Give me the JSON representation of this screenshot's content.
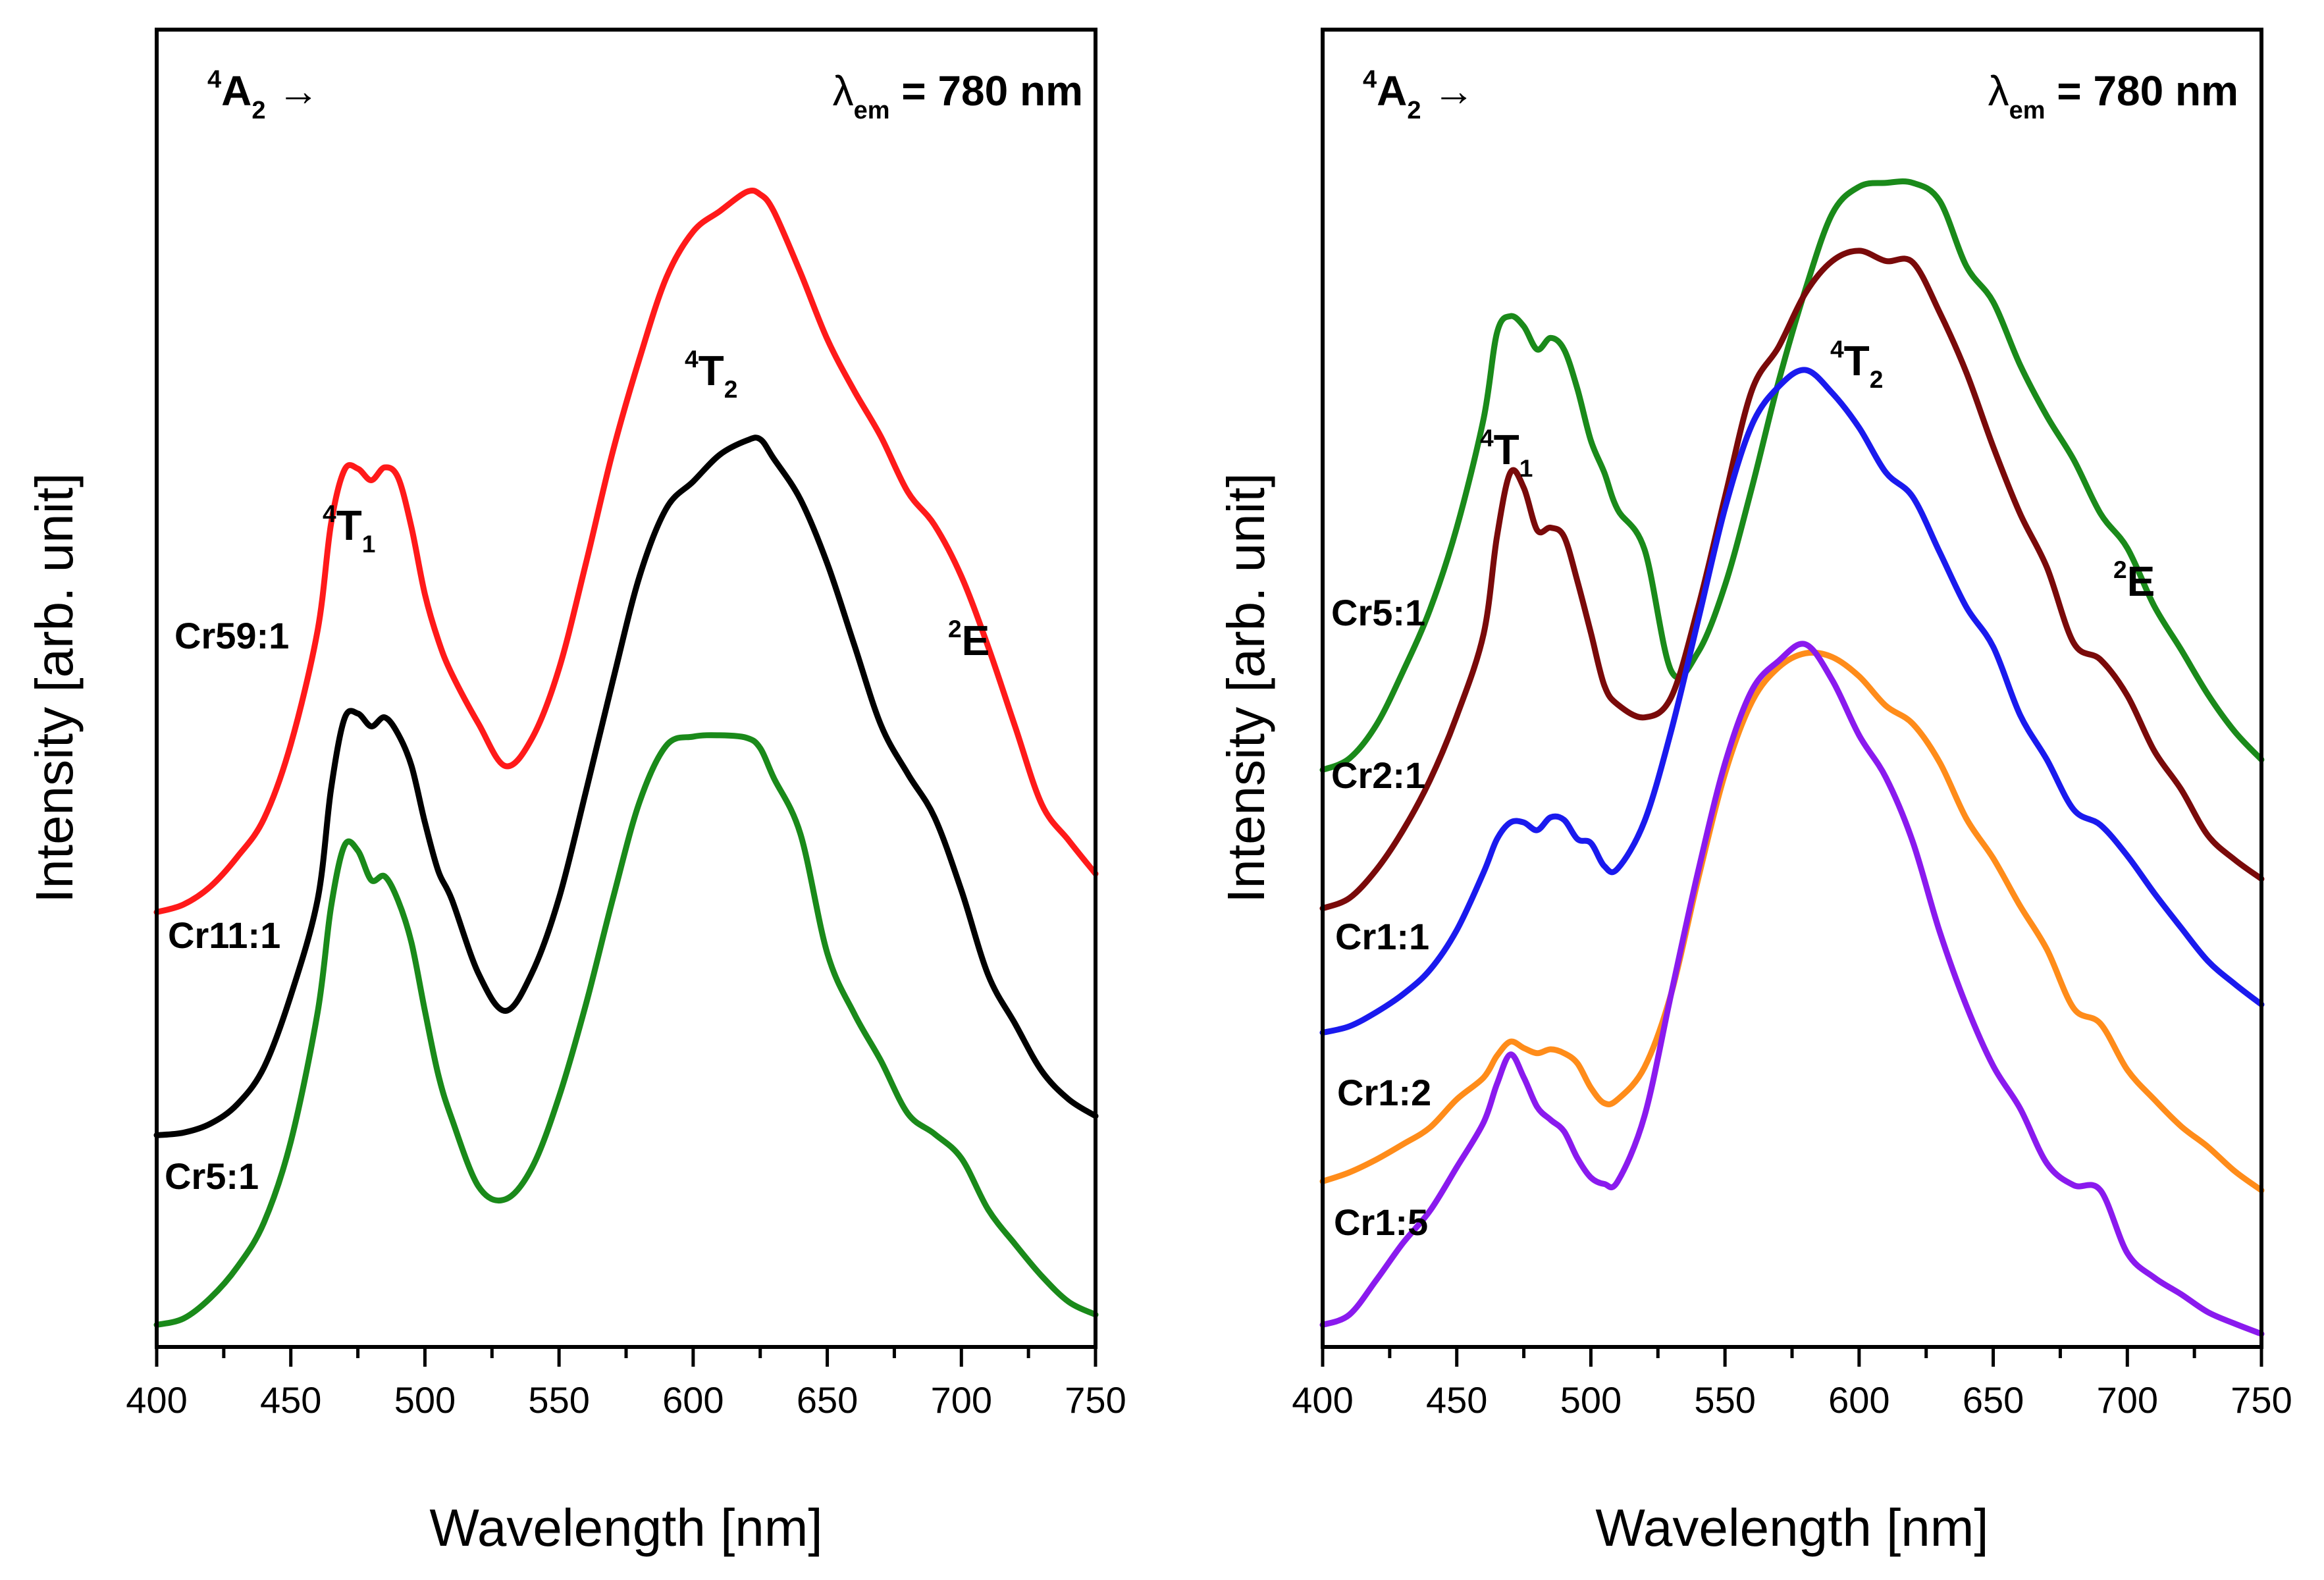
{
  "chart_data": [
    {
      "type": "line",
      "panel": "left",
      "xlabel": "Wavelength [nm]",
      "ylabel": "Intensity [arb. unit]",
      "xlim": [
        400,
        750
      ],
      "xticks": [
        "400",
        "450",
        "500",
        "550",
        "600",
        "650",
        "700",
        "750"
      ],
      "ylim": [
        0,
        1
      ],
      "annotations": {
        "transition_base": "A",
        "transition_sup": "4",
        "transition_sub": "2",
        "arrow": "→",
        "lambda": "λ",
        "lambda_sub": "em",
        "lambda_value": "= 780 nm",
        "t1_base": "T",
        "t1_sup": "4",
        "t1_sub": "1",
        "t2_base": "T",
        "t2_sup": "4",
        "t2_sub": "2",
        "e_base": "E",
        "e_sup": "2"
      },
      "series": [
        {
          "name": "Cr59:1",
          "color": "#ff1a1a",
          "x": [
            400,
            410,
            420,
            430,
            440,
            450,
            460,
            465,
            470,
            475,
            480,
            485,
            490,
            495,
            500,
            505,
            510,
            520,
            530,
            540,
            550,
            560,
            570,
            580,
            590,
            600,
            610,
            620,
            625,
            630,
            640,
            650,
            660,
            670,
            680,
            690,
            700,
            710,
            720,
            730,
            740,
            750
          ],
          "y": [
            0.332,
            0.338,
            0.352,
            0.375,
            0.405,
            0.463,
            0.552,
            0.635,
            0.677,
            0.678,
            0.669,
            0.679,
            0.671,
            0.632,
            0.58,
            0.544,
            0.518,
            0.479,
            0.446,
            0.468,
            0.522,
            0.604,
            0.691,
            0.764,
            0.827,
            0.863,
            0.879,
            0.894,
            0.892,
            0.879,
            0.831,
            0.779,
            0.739,
            0.703,
            0.66,
            0.634,
            0.594,
            0.539,
            0.477,
            0.416,
            0.388,
            0.362
          ]
        },
        {
          "name": "Cr11:1",
          "color": "#000000",
          "x": [
            400,
            410,
            420,
            430,
            440,
            450,
            460,
            465,
            470,
            475,
            480,
            485,
            490,
            495,
            500,
            505,
            510,
            520,
            530,
            540,
            550,
            560,
            570,
            580,
            590,
            600,
            610,
            620,
            625,
            630,
            640,
            650,
            660,
            670,
            680,
            690,
            700,
            710,
            720,
            730,
            740,
            750
          ],
          "y": [
            0.158,
            0.16,
            0.167,
            0.182,
            0.211,
            0.267,
            0.342,
            0.428,
            0.483,
            0.487,
            0.477,
            0.484,
            0.471,
            0.446,
            0.402,
            0.364,
            0.342,
            0.284,
            0.255,
            0.285,
            0.343,
            0.426,
            0.512,
            0.594,
            0.647,
            0.668,
            0.689,
            0.7,
            0.701,
            0.686,
            0.654,
            0.604,
            0.541,
            0.478,
            0.44,
            0.406,
            0.349,
            0.283,
            0.245,
            0.208,
            0.186,
            0.173
          ]
        },
        {
          "name": "Cr5:1",
          "color": "#1a8a1a",
          "x": [
            400,
            410,
            420,
            430,
            440,
            450,
            460,
            465,
            470,
            475,
            480,
            485,
            490,
            495,
            500,
            505,
            510,
            520,
            530,
            540,
            550,
            560,
            570,
            580,
            590,
            600,
            610,
            620,
            625,
            630,
            640,
            650,
            660,
            670,
            680,
            690,
            700,
            710,
            720,
            730,
            740,
            750
          ],
          "y": [
            0.01,
            0.015,
            0.031,
            0.055,
            0.09,
            0.153,
            0.254,
            0.336,
            0.384,
            0.38,
            0.357,
            0.36,
            0.341,
            0.308,
            0.255,
            0.205,
            0.171,
            0.118,
            0.108,
            0.133,
            0.188,
            0.26,
            0.342,
            0.418,
            0.462,
            0.469,
            0.47,
            0.468,
            0.46,
            0.437,
            0.393,
            0.3,
            0.253,
            0.216,
            0.175,
            0.159,
            0.14,
            0.1,
            0.073,
            0.048,
            0.028,
            0.018
          ]
        }
      ]
    },
    {
      "type": "line",
      "panel": "right",
      "xlabel": "Wavelength [nm]",
      "ylabel": "Intensity [arb. unit]",
      "xlim": [
        400,
        750
      ],
      "xticks": [
        "400",
        "450",
        "500",
        "550",
        "600",
        "650",
        "700",
        "750"
      ],
      "ylim": [
        0,
        1
      ],
      "annotations": {
        "transition_base": "A",
        "transition_sup": "4",
        "transition_sub": "2",
        "arrow": "→",
        "lambda": "λ",
        "lambda_sub": "em",
        "lambda_value": "= 780 nm",
        "t1_base": "T",
        "t1_sup": "4",
        "t1_sub": "1",
        "t2_base": "T",
        "t2_sup": "4",
        "t2_sub": "2",
        "e_base": "E",
        "e_sup": "2"
      },
      "series": [
        {
          "name": "Cr5:1",
          "color": "#1a8a1a",
          "x": [
            400,
            410,
            420,
            430,
            440,
            450,
            460,
            465,
            470,
            475,
            480,
            485,
            490,
            495,
            500,
            505,
            510,
            520,
            530,
            540,
            550,
            560,
            570,
            580,
            590,
            600,
            610,
            620,
            630,
            640,
            650,
            660,
            670,
            680,
            690,
            700,
            710,
            720,
            730,
            740,
            750
          ],
          "y": [
            0.443,
            0.452,
            0.478,
            0.52,
            0.568,
            0.632,
            0.717,
            0.784,
            0.797,
            0.789,
            0.771,
            0.78,
            0.771,
            0.74,
            0.7,
            0.675,
            0.646,
            0.615,
            0.52,
            0.535,
            0.587,
            0.663,
            0.746,
            0.818,
            0.877,
            0.898,
            0.901,
            0.901,
            0.887,
            0.836,
            0.808,
            0.759,
            0.719,
            0.685,
            0.643,
            0.616,
            0.571,
            0.537,
            0.502,
            0.473,
            0.451
          ]
        },
        {
          "name": "Cr2:1",
          "color": "#7a0a0a",
          "x": [
            400,
            410,
            420,
            430,
            440,
            450,
            460,
            465,
            470,
            475,
            480,
            485,
            490,
            495,
            500,
            505,
            510,
            520,
            530,
            540,
            550,
            560,
            570,
            580,
            590,
            600,
            610,
            620,
            630,
            640,
            650,
            660,
            670,
            680,
            690,
            700,
            710,
            720,
            730,
            740,
            750
          ],
          "y": [
            0.335,
            0.343,
            0.365,
            0.396,
            0.435,
            0.485,
            0.549,
            0.625,
            0.675,
            0.663,
            0.63,
            0.632,
            0.625,
            0.59,
            0.55,
            0.509,
            0.494,
            0.484,
            0.5,
            0.57,
            0.656,
            0.739,
            0.773,
            0.815,
            0.84,
            0.848,
            0.84,
            0.839,
            0.8,
            0.753,
            0.695,
            0.643,
            0.601,
            0.542,
            0.529,
            0.501,
            0.458,
            0.428,
            0.392,
            0.373,
            0.358
          ]
        },
        {
          "name": "Cr1:1",
          "color": "#1a1aee",
          "x": [
            400,
            410,
            420,
            430,
            440,
            450,
            460,
            465,
            470,
            475,
            480,
            485,
            490,
            495,
            500,
            505,
            510,
            520,
            530,
            540,
            550,
            560,
            570,
            580,
            590,
            600,
            610,
            620,
            630,
            640,
            650,
            660,
            670,
            680,
            690,
            700,
            710,
            720,
            730,
            740,
            750
          ],
          "y": [
            0.238,
            0.243,
            0.254,
            0.268,
            0.287,
            0.318,
            0.363,
            0.389,
            0.402,
            0.402,
            0.396,
            0.406,
            0.404,
            0.389,
            0.386,
            0.368,
            0.366,
            0.403,
            0.474,
            0.56,
            0.647,
            0.712,
            0.742,
            0.755,
            0.737,
            0.71,
            0.675,
            0.656,
            0.613,
            0.57,
            0.539,
            0.486,
            0.451,
            0.412,
            0.4,
            0.376,
            0.347,
            0.32,
            0.294,
            0.276,
            0.26
          ]
        },
        {
          "name": "Cr1:2",
          "color": "#ff8c1a",
          "x": [
            400,
            410,
            420,
            430,
            440,
            450,
            460,
            465,
            470,
            475,
            480,
            485,
            490,
            495,
            500,
            505,
            510,
            520,
            530,
            540,
            550,
            560,
            570,
            580,
            590,
            600,
            610,
            620,
            630,
            640,
            650,
            660,
            670,
            680,
            690,
            700,
            710,
            720,
            730,
            740,
            750
          ],
          "y": [
            0.122,
            0.129,
            0.139,
            0.151,
            0.164,
            0.186,
            0.203,
            0.22,
            0.231,
            0.226,
            0.222,
            0.225,
            0.222,
            0.214,
            0.195,
            0.183,
            0.186,
            0.211,
            0.269,
            0.358,
            0.44,
            0.496,
            0.523,
            0.534,
            0.531,
            0.516,
            0.493,
            0.479,
            0.449,
            0.405,
            0.374,
            0.337,
            0.303,
            0.257,
            0.245,
            0.209,
            0.186,
            0.165,
            0.149,
            0.13,
            0.115
          ]
        },
        {
          "name": "Cr1:5",
          "color": "#8a1aee",
          "x": [
            400,
            410,
            420,
            430,
            440,
            450,
            460,
            465,
            470,
            475,
            480,
            485,
            490,
            495,
            500,
            505,
            510,
            520,
            530,
            540,
            550,
            560,
            570,
            580,
            590,
            600,
            610,
            620,
            630,
            640,
            650,
            660,
            670,
            680,
            690,
            700,
            710,
            720,
            730,
            740,
            750
          ],
          "y": [
            0.01,
            0.018,
            0.045,
            0.074,
            0.099,
            0.133,
            0.168,
            0.198,
            0.221,
            0.203,
            0.18,
            0.17,
            0.161,
            0.14,
            0.125,
            0.12,
            0.122,
            0.173,
            0.269,
            0.364,
            0.448,
            0.505,
            0.528,
            0.541,
            0.513,
            0.47,
            0.437,
            0.387,
            0.317,
            0.259,
            0.212,
            0.179,
            0.136,
            0.119,
            0.115,
            0.066,
            0.047,
            0.034,
            0.02,
            0.011,
            0.003
          ]
        }
      ]
    }
  ]
}
